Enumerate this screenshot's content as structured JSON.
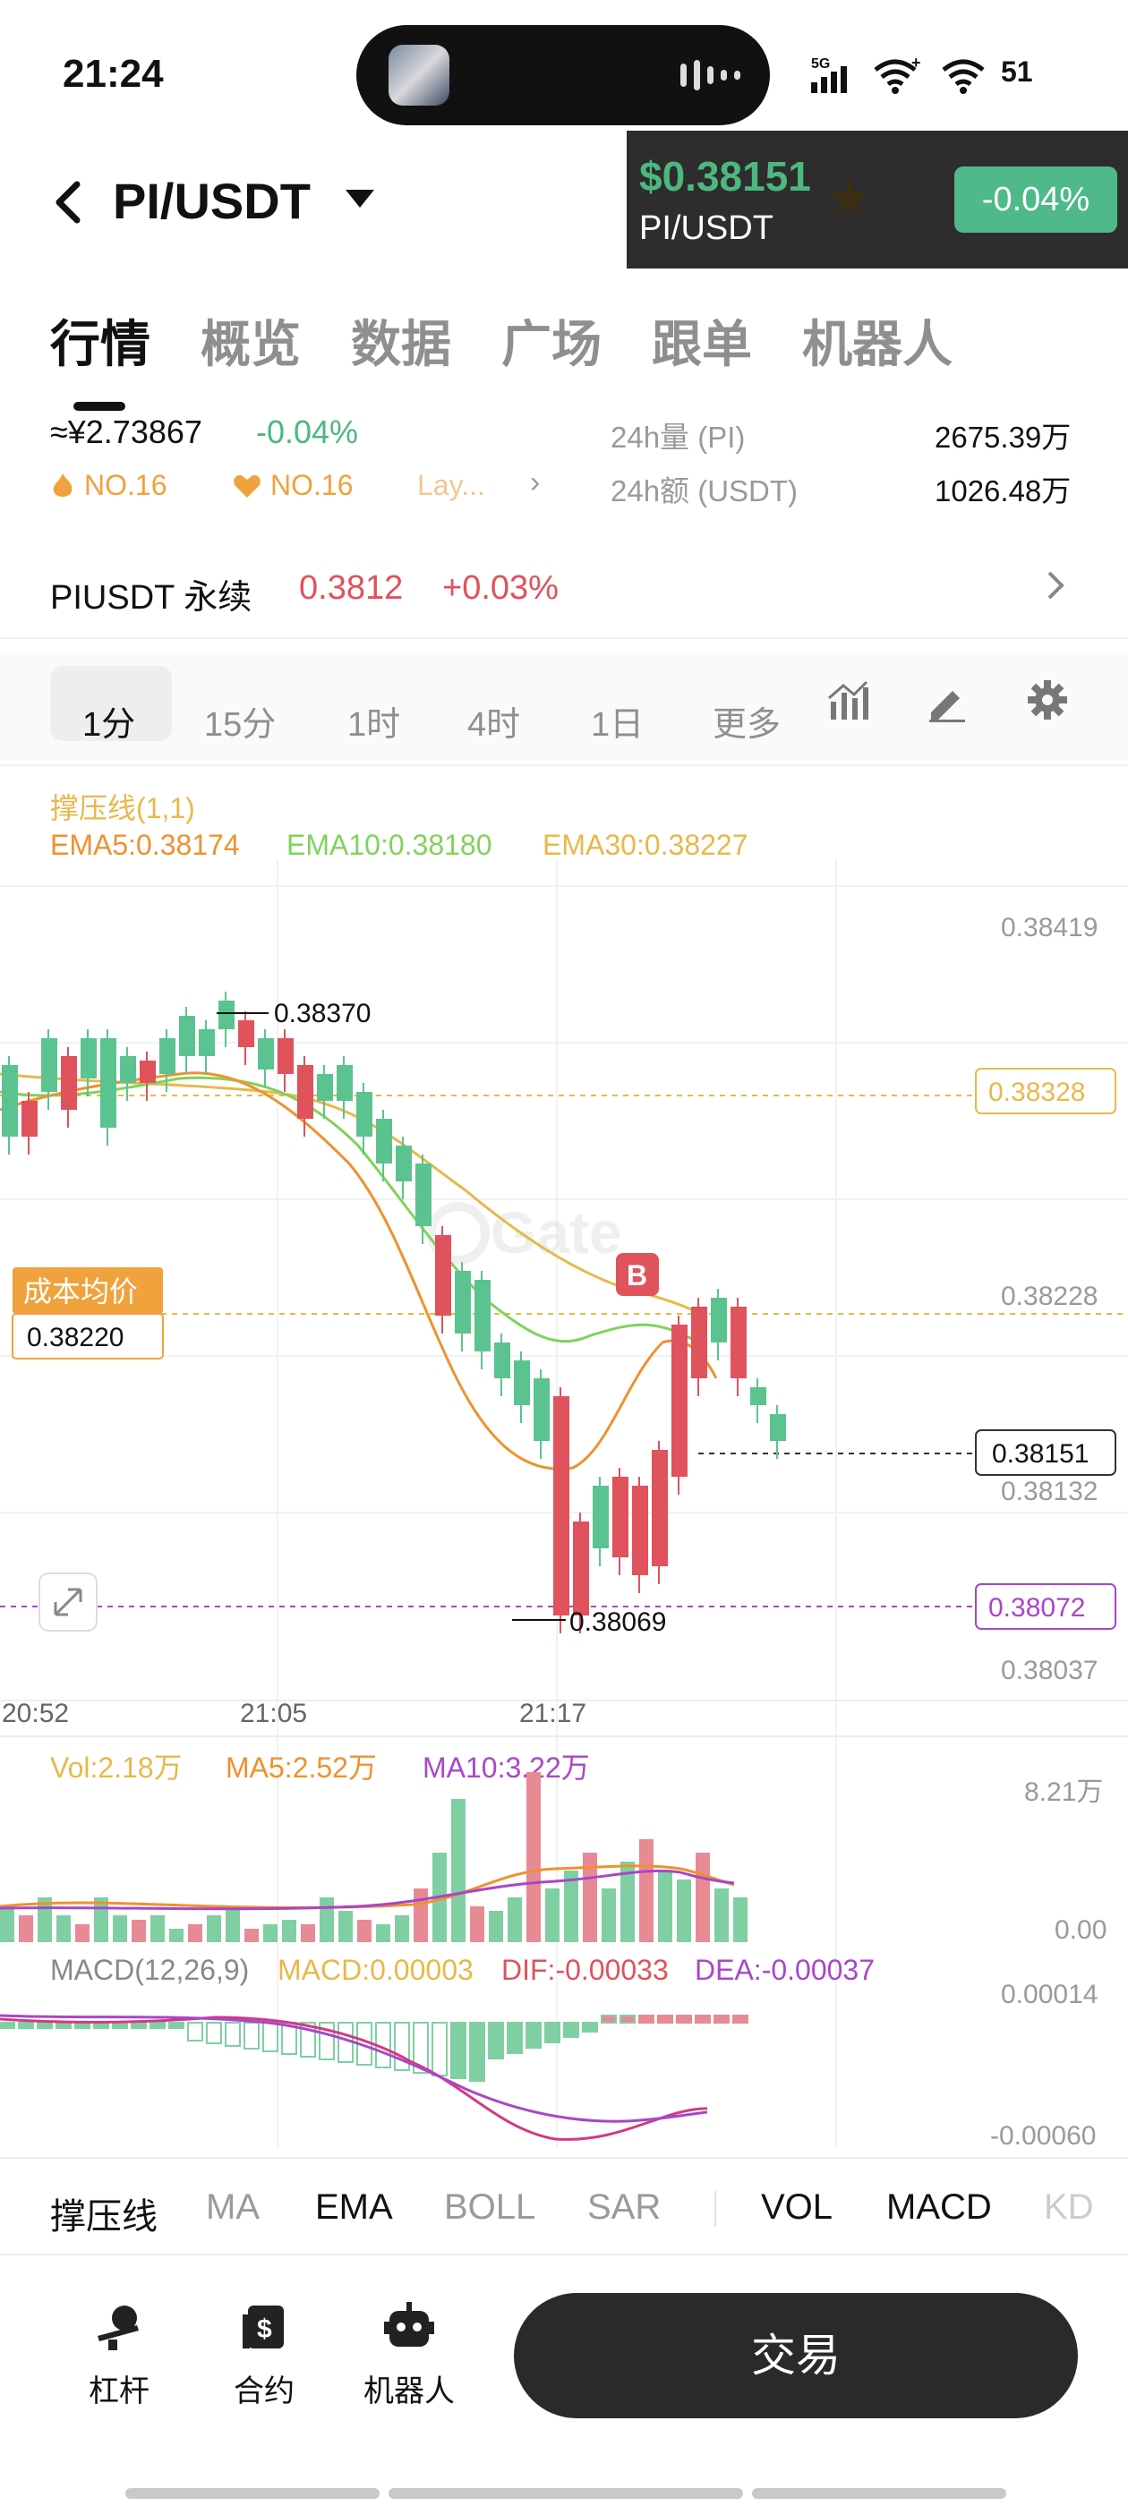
{
  "status": {
    "time": "21:24",
    "network": "5G",
    "battery": "51"
  },
  "header": {
    "back_icon": "chevron-left-icon",
    "pair": "PI/USDT"
  },
  "float_ticker": {
    "price": "$0.38151",
    "pair": "PI/USDT",
    "change": "-0.04%"
  },
  "tabs": [
    "行情",
    "概览",
    "数据",
    "广场",
    "跟单",
    "机器人"
  ],
  "stats": {
    "cny_price": "≈¥2.73867",
    "change": "-0.04%",
    "rank1": "NO.16",
    "rank2": "NO.16",
    "tag": "Lay...",
    "vol_label": "24h量 (PI)",
    "vol_value": "2675.39万",
    "amt_label": "24h额 (USDT)",
    "amt_value": "1026.48万"
  },
  "perp": {
    "name": "PIUSDT 永续",
    "price": "0.3812",
    "change": "+0.03%"
  },
  "intervals": [
    "1分",
    "15分",
    "1时",
    "4时",
    "1日",
    "更多"
  ],
  "legend": {
    "indicator": "撑压线(1,1)",
    "ema5": "EMA5:0.38174",
    "ema10": "EMA10:0.38180",
    "ema30": "EMA30:0.38227",
    "vol": "Vol:2.18万",
    "ma5": "MA5:2.52万",
    "ma10": "MA10:3.22万",
    "macd_name": "MACD(12,26,9)",
    "macd": "MACD:0.00003",
    "dif": "DIF:-0.00033",
    "dea": "DEA:-0.00037"
  },
  "chart_data": {
    "type": "candlestick",
    "y_axis_ticks": [
      "0.38419",
      "0.38328",
      "0.38228",
      "0.38132",
      "0.38037"
    ],
    "x_axis_ticks": [
      "20:52",
      "21:05",
      "21:17"
    ],
    "high_label": "0.38370",
    "low_label": "0.38069",
    "cost_avg_label": "成本均价",
    "cost_avg_value": "0.38220",
    "current_price": "0.38151",
    "support_line": "0.38072",
    "resistance_line": "0.38328",
    "buy_marker": "B",
    "vol_axis": [
      "8.21万",
      "0.00"
    ],
    "macd_axis": [
      "0.00014",
      "-0.00060"
    ],
    "watermark": "Gate",
    "colors": {
      "up": "#5bc38f",
      "down": "#e0525c",
      "ema5": "#f0912d",
      "ema10": "#7fd35a",
      "ema30": "#e8b84a",
      "ma10": "#a946c9",
      "dea": "#a946c9"
    }
  },
  "indicator_bar": [
    "撑压线",
    "MA",
    "EMA",
    "BOLL",
    "SAR",
    "VOL",
    "MACD",
    "KD"
  ],
  "nav": [
    {
      "label": "杠杆",
      "icon": "leverage-icon"
    },
    {
      "label": "合约",
      "icon": "contract-icon"
    },
    {
      "label": "机器人",
      "icon": "robot-icon"
    }
  ],
  "trade_label": "交易"
}
